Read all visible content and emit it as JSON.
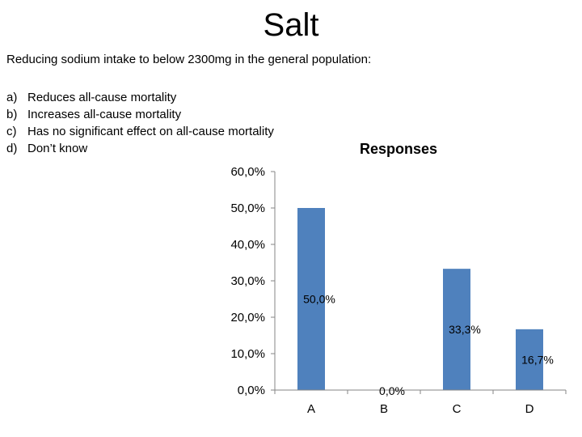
{
  "slide": {
    "title": "Salt",
    "question": "Reducing sodium intake to below 2300mg in the general population:",
    "options": [
      {
        "letter": "a)",
        "text": "Reduces all-cause mortality"
      },
      {
        "letter": "b)",
        "text": "Increases all-cause mortality"
      },
      {
        "letter": "c)",
        "text": "Has no significant effect on all-cause mortality"
      },
      {
        "letter": "d)",
        "text": "Don’t know"
      }
    ]
  },
  "colors": {
    "bar": "#4f81bd",
    "axis": "#868686"
  },
  "chart_data": {
    "type": "bar",
    "title": "Responses",
    "categories": [
      "A",
      "B",
      "C",
      "D"
    ],
    "values": [
      50.0,
      0.0,
      33.3,
      16.7
    ],
    "data_labels": [
      "50,0%",
      "0,0%",
      "33,3%",
      "16,7%"
    ],
    "ylim": [
      0,
      60
    ],
    "yticks": [
      0,
      10,
      20,
      30,
      40,
      50,
      60
    ],
    "ytick_labels": [
      "0,0%",
      "10,0%",
      "20,0%",
      "30,0%",
      "40,0%",
      "50,0%",
      "60,0%"
    ],
    "grid": false,
    "legend": "none"
  }
}
